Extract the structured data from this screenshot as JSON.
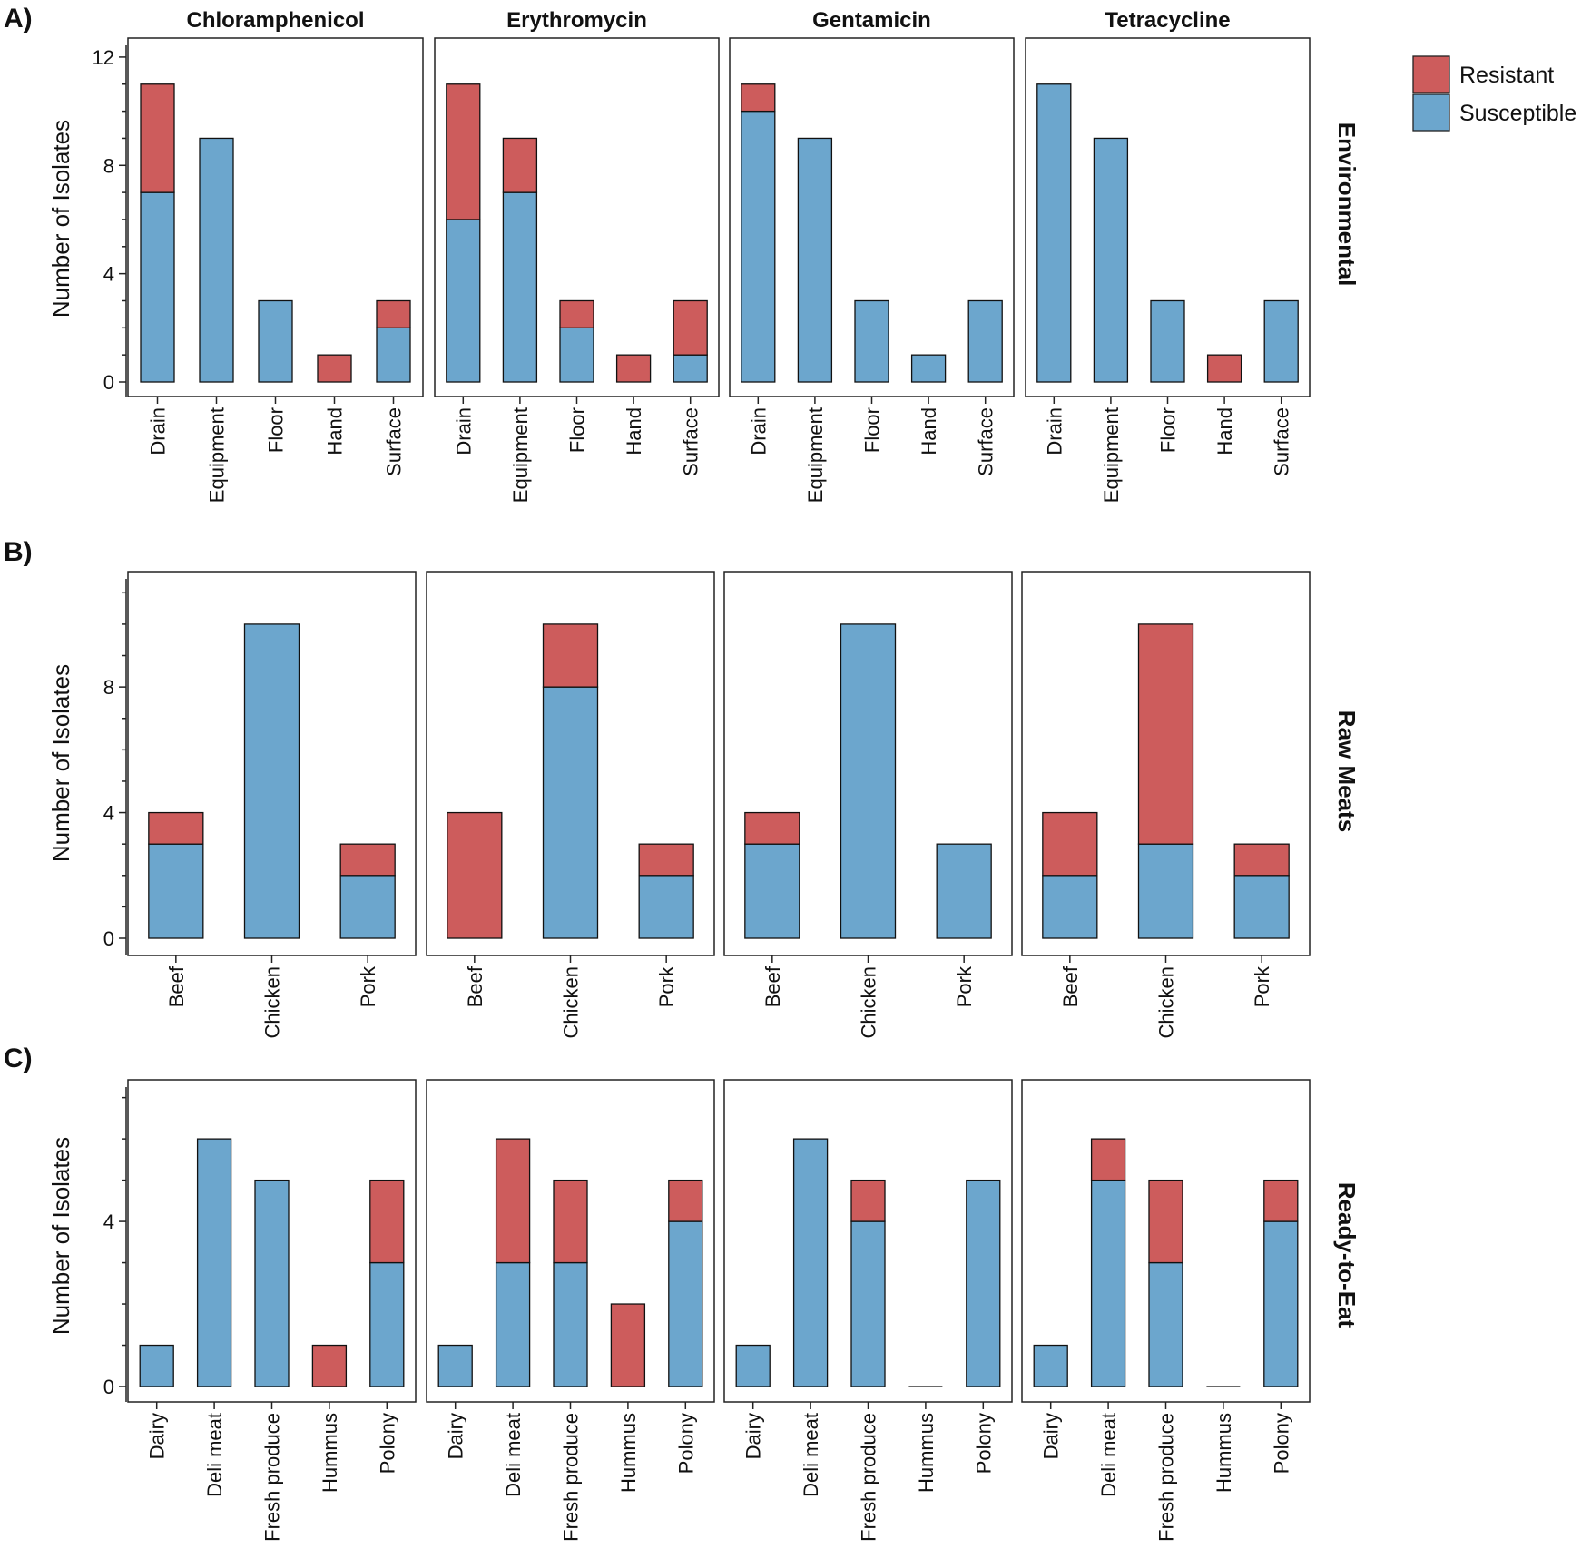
{
  "legend": [
    {
      "label": "Resistant",
      "color": "#CD5C5C"
    },
    {
      "label": "Susceptible",
      "color": "#6CA6CD"
    }
  ],
  "chart_data": [
    {
      "type": "bar",
      "panel_label": "A)",
      "row_label": "Environmental",
      "ylabel": "Number of Isolates",
      "ylim": [
        0,
        12.5
      ],
      "yticks": [
        0,
        4,
        8,
        12
      ],
      "stacked": true,
      "categories": [
        "Drain",
        "Equipment",
        "Floor",
        "Hand",
        "Surface"
      ],
      "facets": [
        {
          "title": "Chloramphenicol",
          "series": [
            {
              "name": "Susceptible",
              "values": [
                7,
                9,
                3,
                0,
                2
              ]
            },
            {
              "name": "Resistant",
              "values": [
                4,
                0,
                0,
                1,
                1
              ]
            }
          ]
        },
        {
          "title": "Erythromycin",
          "series": [
            {
              "name": "Susceptible",
              "values": [
                6,
                7,
                2,
                0,
                1
              ]
            },
            {
              "name": "Resistant",
              "values": [
                5,
                2,
                1,
                1,
                2
              ]
            }
          ]
        },
        {
          "title": "Gentamicin",
          "series": [
            {
              "name": "Susceptible",
              "values": [
                10,
                9,
                3,
                1,
                3
              ]
            },
            {
              "name": "Resistant",
              "values": [
                1,
                0,
                0,
                0,
                0
              ]
            }
          ]
        },
        {
          "title": "Tetracycline",
          "series": [
            {
              "name": "Susceptible",
              "values": [
                11,
                9,
                3,
                0,
                3
              ]
            },
            {
              "name": "Resistant",
              "values": [
                0,
                0,
                0,
                1,
                0
              ]
            }
          ]
        }
      ]
    },
    {
      "type": "bar",
      "panel_label": "B)",
      "row_label": "Raw Meats",
      "ylabel": "Number of Isolates",
      "ylim": [
        0,
        11.5
      ],
      "yticks": [
        0,
        4,
        8
      ],
      "stacked": true,
      "categories": [
        "Beef",
        "Chicken",
        "Pork"
      ],
      "facets": [
        {
          "title": "Chloramphenicol",
          "series": [
            {
              "name": "Susceptible",
              "values": [
                3,
                10,
                2
              ]
            },
            {
              "name": "Resistant",
              "values": [
                1,
                0,
                1
              ]
            }
          ]
        },
        {
          "title": "Erythromycin",
          "series": [
            {
              "name": "Susceptible",
              "values": [
                0,
                8,
                2
              ]
            },
            {
              "name": "Resistant",
              "values": [
                4,
                2,
                1
              ]
            }
          ]
        },
        {
          "title": "Gentamicin",
          "series": [
            {
              "name": "Susceptible",
              "values": [
                3,
                10,
                3
              ]
            },
            {
              "name": "Resistant",
              "values": [
                1,
                0,
                0
              ]
            }
          ]
        },
        {
          "title": "Tetracycline",
          "series": [
            {
              "name": "Susceptible",
              "values": [
                2,
                3,
                2
              ]
            },
            {
              "name": "Resistant",
              "values": [
                2,
                7,
                1
              ]
            }
          ]
        }
      ]
    },
    {
      "type": "bar",
      "panel_label": "C)",
      "row_label": "Ready-to-Eat",
      "ylabel": "Number of Isolates",
      "ylim": [
        0,
        7.3
      ],
      "yticks": [
        0,
        4
      ],
      "stacked": true,
      "categories": [
        "Dairy",
        "Deli meat",
        "Fresh produce",
        "Hummus",
        "Polony"
      ],
      "facets": [
        {
          "title": "Chloramphenicol",
          "series": [
            {
              "name": "Susceptible",
              "values": [
                1,
                6,
                5,
                0,
                3
              ]
            },
            {
              "name": "Resistant",
              "values": [
                0,
                0,
                0,
                1,
                2
              ]
            }
          ]
        },
        {
          "title": "Erythromycin",
          "series": [
            {
              "name": "Susceptible",
              "values": [
                1,
                3,
                3,
                0,
                4
              ]
            },
            {
              "name": "Resistant",
              "values": [
                0,
                3,
                2,
                2,
                1
              ]
            }
          ]
        },
        {
          "title": "Gentamicin",
          "series": [
            {
              "name": "Susceptible",
              "values": [
                1,
                6,
                4,
                0,
                5
              ]
            },
            {
              "name": "Resistant",
              "values": [
                0,
                0,
                1,
                0,
                0
              ]
            }
          ]
        },
        {
          "title": "Tetracycline",
          "series": [
            {
              "name": "Susceptible",
              "values": [
                1,
                5,
                3,
                0,
                4
              ]
            },
            {
              "name": "Resistant",
              "values": [
                0,
                1,
                2,
                0,
                1
              ]
            }
          ]
        }
      ]
    }
  ]
}
